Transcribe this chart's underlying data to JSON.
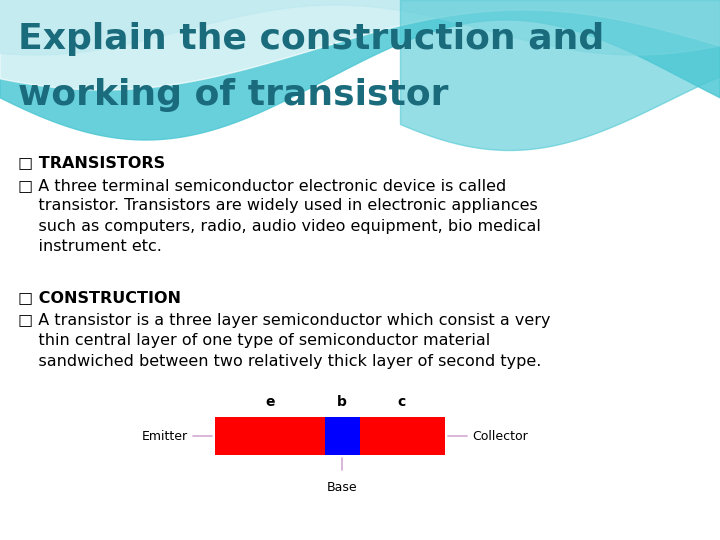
{
  "title_line1": "Explain the construction and",
  "title_line2": "working of transistor",
  "title_color": "#1a6b7c",
  "title_fontsize": 26,
  "bg_color": "#ffffff",
  "wave_teal": "#4ec8d4",
  "wave_light": "#b8e8ef",
  "wave_white": "#e8f6f8",
  "bullet_char": "□",
  "bullet1_header": "TRANSISTORS",
  "bullet3_header": "CONSTRUCTION",
  "body_fontsize": 11.5,
  "body_color": "#000000",
  "emitter_color": "#ff0000",
  "base_color": "#0000ff",
  "collector_color": "#ff0000",
  "annotation_color": "#cc99cc",
  "diagram_label_fontsize": 9
}
